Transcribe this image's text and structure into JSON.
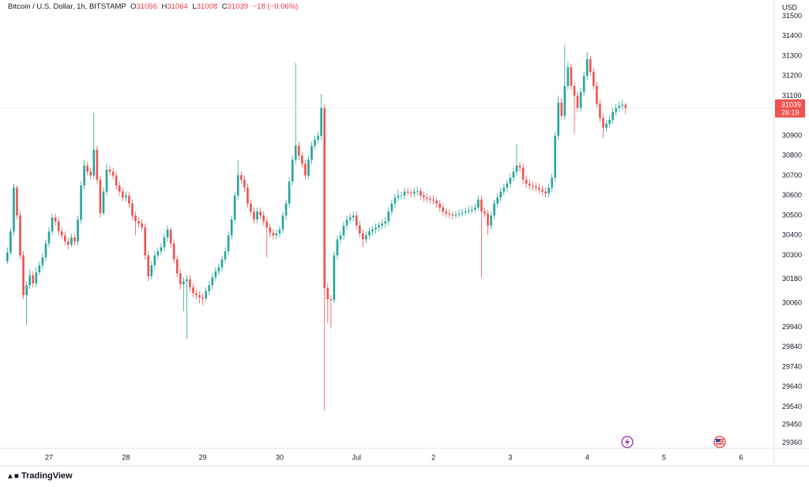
{
  "chart_data": {
    "type": "candlestick",
    "symbol": "Bitcoin / U.S. Dollar, 1h, BITSTAMP",
    "ohlc_legend": {
      "open_key": "O",
      "open": 31056,
      "high_key": "H",
      "high": 31064,
      "low_key": "L",
      "low": 31008,
      "close_key": "C",
      "close": 31039,
      "change": "−18 (−0.06%)"
    },
    "currency": "USD",
    "last_price": 31039,
    "countdown": "26:19",
    "brand": "TradingView",
    "up_color": "#26a69a",
    "down_color": "#ef5350",
    "grid": false,
    "ylim": [
      29332,
      31581
    ],
    "yticks": [
      31500,
      31400,
      31300,
      31200,
      31100,
      30900,
      30800,
      30700,
      30600,
      30500,
      30400,
      30300,
      30180,
      30060,
      29940,
      29840,
      29740,
      29640,
      29540,
      29450,
      29360
    ],
    "xlim": [
      -15.3,
      226.4
    ],
    "xticks": [
      {
        "value": 0,
        "label": "27"
      },
      {
        "value": 24,
        "label": "28"
      },
      {
        "value": 48,
        "label": "29"
      },
      {
        "value": 72,
        "label": "30"
      },
      {
        "value": 96,
        "label": "Jul"
      },
      {
        "value": 120,
        "label": "2"
      },
      {
        "value": 144,
        "label": "3"
      },
      {
        "value": 168,
        "label": "4"
      },
      {
        "value": 192,
        "label": "5"
      },
      {
        "value": 216,
        "label": "6"
      }
    ],
    "x": [
      -13,
      -12,
      -11,
      -10,
      -9,
      -8,
      -7,
      -6,
      -5,
      -4,
      -3,
      -2,
      -1,
      0,
      1,
      2,
      3,
      4,
      5,
      6,
      7,
      8,
      9,
      10,
      11,
      12,
      13,
      14,
      15,
      16,
      17,
      18,
      19,
      20,
      21,
      22,
      23,
      24,
      25,
      26,
      27,
      28,
      29,
      30,
      31,
      32,
      33,
      34,
      35,
      36,
      37,
      38,
      39,
      40,
      41,
      42,
      43,
      44,
      45,
      46,
      47,
      48,
      49,
      50,
      51,
      52,
      53,
      54,
      55,
      56,
      57,
      58,
      59,
      60,
      61,
      62,
      63,
      64,
      65,
      66,
      67,
      68,
      69,
      70,
      71,
      72,
      73,
      74,
      75,
      76,
      77,
      78,
      79,
      80,
      81,
      82,
      83,
      84,
      85,
      86,
      87,
      88,
      89,
      90,
      91,
      92,
      93,
      94,
      95,
      96,
      97,
      98,
      99,
      100,
      101,
      102,
      103,
      104,
      105,
      106,
      107,
      108,
      109,
      110,
      111,
      112,
      113,
      114,
      115,
      116,
      117,
      118,
      119,
      120,
      121,
      122,
      123,
      124,
      125,
      126,
      127,
      128,
      129,
      130,
      131,
      132,
      133,
      134,
      135,
      136,
      137,
      138,
      139,
      140,
      141,
      142,
      143,
      144,
      145,
      146,
      147,
      148,
      149,
      150,
      151,
      152,
      153,
      154,
      155,
      156,
      157,
      158,
      159,
      160,
      161,
      162,
      163,
      164,
      165,
      166,
      167,
      168,
      169,
      170,
      171,
      172,
      173,
      174,
      175,
      176,
      177,
      178,
      179,
      180
    ],
    "candles": [
      [
        30270,
        30340,
        30255,
        30314
      ],
      [
        30314,
        30440,
        30300,
        30420
      ],
      [
        30420,
        30660,
        30400,
        30640
      ],
      [
        30640,
        30650,
        30480,
        30500
      ],
      [
        30500,
        30520,
        30280,
        30300
      ],
      [
        30300,
        30320,
        30080,
        30100
      ],
      [
        30100,
        30170,
        29950,
        30150
      ],
      [
        30150,
        30230,
        30130,
        30200
      ],
      [
        30200,
        30220,
        30140,
        30160
      ],
      [
        30160,
        30240,
        30140,
        30215
      ],
      [
        30215,
        30270,
        30200,
        30250
      ],
      [
        30250,
        30310,
        30230,
        30290
      ],
      [
        30290,
        30380,
        30270,
        30360
      ],
      [
        30360,
        30440,
        30340,
        30420
      ],
      [
        30420,
        30510,
        30400,
        30490
      ],
      [
        30490,
        30510,
        30450,
        30470
      ],
      [
        30470,
        30490,
        30400,
        30420
      ],
      [
        30420,
        30440,
        30380,
        30400
      ],
      [
        30400,
        30420,
        30350,
        30370
      ],
      [
        30370,
        30390,
        30330,
        30354
      ],
      [
        30354,
        30410,
        30340,
        30390
      ],
      [
        30390,
        30410,
        30350,
        30370
      ],
      [
        30370,
        30500,
        30350,
        30480
      ],
      [
        30480,
        30670,
        30460,
        30650
      ],
      [
        30650,
        30780,
        30630,
        30750
      ],
      [
        30750,
        30770,
        30700,
        30720
      ],
      [
        30720,
        30740,
        30680,
        30700
      ],
      [
        30700,
        31015,
        30680,
        30830
      ],
      [
        30830,
        30850,
        30660,
        30680
      ],
      [
        30680,
        30700,
        30490,
        30512
      ],
      [
        30512,
        30640,
        30500,
        30620
      ],
      [
        30620,
        30760,
        30600,
        30730
      ],
      [
        30730,
        30750,
        30700,
        30720
      ],
      [
        30720,
        30740,
        30680,
        30700
      ],
      [
        30700,
        30720,
        30630,
        30650
      ],
      [
        30650,
        30670,
        30600,
        30620
      ],
      [
        30620,
        30640,
        30570,
        30590
      ],
      [
        30590,
        30620,
        30570,
        30600
      ],
      [
        30600,
        30620,
        30540,
        30560
      ],
      [
        30560,
        30580,
        30480,
        30500
      ],
      [
        30500,
        30520,
        30400,
        30472
      ],
      [
        30472,
        30490,
        30440,
        30460
      ],
      [
        30460,
        30480,
        30420,
        30440
      ],
      [
        30440,
        30460,
        30280,
        30300
      ],
      [
        30300,
        30320,
        30170,
        30195
      ],
      [
        30195,
        30270,
        30180,
        30250
      ],
      [
        30250,
        30320,
        30230,
        30300
      ],
      [
        30300,
        30340,
        30280,
        30320
      ],
      [
        30320,
        30360,
        30300,
        30340
      ],
      [
        30340,
        30410,
        30320,
        30390
      ],
      [
        30390,
        30450,
        30370,
        30429
      ],
      [
        30429,
        30440,
        30340,
        30360
      ],
      [
        30360,
        30380,
        30260,
        30280
      ],
      [
        30280,
        30300,
        30190,
        30210
      ],
      [
        30210,
        30230,
        30130,
        30155
      ],
      [
        30155,
        30190,
        30020,
        30170
      ],
      [
        30170,
        30200,
        29880,
        30180
      ],
      [
        30180,
        30200,
        30120,
        30140
      ],
      [
        30140,
        30160,
        30090,
        30110
      ],
      [
        30110,
        30130,
        30080,
        30100
      ],
      [
        30100,
        30120,
        30060,
        30090
      ],
      [
        30090,
        30110,
        30050,
        30084
      ],
      [
        30084,
        30140,
        30070,
        30120
      ],
      [
        30120,
        30170,
        30100,
        30150
      ],
      [
        30150,
        30210,
        30130,
        30190
      ],
      [
        30190,
        30240,
        30170,
        30220
      ],
      [
        30220,
        30260,
        30200,
        30240
      ],
      [
        30240,
        30300,
        30220,
        30280
      ],
      [
        30280,
        30340,
        30260,
        30320
      ],
      [
        30320,
        30420,
        30300,
        30400
      ],
      [
        30400,
        30500,
        30380,
        30480
      ],
      [
        30480,
        30620,
        30460,
        30600
      ],
      [
        30600,
        30780,
        30580,
        30702
      ],
      [
        30702,
        30720,
        30660,
        30680
      ],
      [
        30680,
        30700,
        30620,
        30640
      ],
      [
        30640,
        30660,
        30540,
        30560
      ],
      [
        30560,
        30580,
        30500,
        30520
      ],
      [
        30520,
        30540,
        30460,
        30480
      ],
      [
        30480,
        30540,
        30460,
        30520
      ],
      [
        30520,
        30540,
        30480,
        30500
      ],
      [
        30500,
        30520,
        30450,
        30470
      ],
      [
        30470,
        30490,
        30290,
        30440
      ],
      [
        30440,
        30460,
        30390,
        30413
      ],
      [
        30413,
        30430,
        30380,
        30400
      ],
      [
        30400,
        30430,
        30380,
        30410
      ],
      [
        30410,
        30450,
        30390,
        30430
      ],
      [
        30430,
        30520,
        30410,
        30500
      ],
      [
        30500,
        30580,
        30480,
        30560
      ],
      [
        30560,
        30690,
        30540,
        30670
      ],
      [
        30670,
        30800,
        30650,
        30780
      ],
      [
        30780,
        31264,
        30760,
        30850
      ],
      [
        30850,
        30870,
        30780,
        30800
      ],
      [
        30800,
        30820,
        30740,
        30760
      ],
      [
        30760,
        30780,
        30680,
        30700
      ],
      [
        30700,
        30800,
        30680,
        30780
      ],
      [
        30780,
        30870,
        30760,
        30850
      ],
      [
        30850,
        30900,
        30830,
        30880
      ],
      [
        30880,
        30920,
        30860,
        30900
      ],
      [
        30900,
        31110,
        30880,
        31040
      ],
      [
        31040,
        31060,
        29522,
        30136
      ],
      [
        30136,
        30160,
        29960,
        30080
      ],
      [
        30080,
        30100,
        29935,
        30076
      ],
      [
        30076,
        30320,
        30060,
        30300
      ],
      [
        30300,
        30400,
        30280,
        30380
      ],
      [
        30380,
        30420,
        30360,
        30400
      ],
      [
        30400,
        30470,
        30380,
        30450
      ],
      [
        30450,
        30500,
        30430,
        30478
      ],
      [
        30478,
        30510,
        30460,
        30490
      ],
      [
        30490,
        30520,
        30470,
        30500
      ],
      [
        30500,
        30520,
        30430,
        30450
      ],
      [
        30450,
        30470,
        30390,
        30410
      ],
      [
        30410,
        30430,
        30340,
        30380
      ],
      [
        30380,
        30420,
        30360,
        30400
      ],
      [
        30400,
        30440,
        30380,
        30420
      ],
      [
        30420,
        30450,
        30400,
        30430
      ],
      [
        30430,
        30460,
        30410,
        30440
      ],
      [
        30440,
        30470,
        30420,
        30450
      ],
      [
        30450,
        30480,
        30430,
        30460
      ],
      [
        30460,
        30490,
        30440,
        30470
      ],
      [
        30470,
        30540,
        30450,
        30520
      ],
      [
        30520,
        30580,
        30500,
        30560
      ],
      [
        30560,
        30610,
        30540,
        30590
      ],
      [
        30590,
        30630,
        30570,
        30600
      ],
      [
        30600,
        30620,
        30580,
        30600
      ],
      [
        30600,
        30640,
        30580,
        30620
      ],
      [
        30620,
        30640,
        30600,
        30615
      ],
      [
        30615,
        30630,
        30590,
        30610
      ],
      [
        30610,
        30640,
        30590,
        30620
      ],
      [
        30620,
        30645,
        30600,
        30623
      ],
      [
        30623,
        30640,
        30580,
        30600
      ],
      [
        30600,
        30620,
        30570,
        30590
      ],
      [
        30590,
        30610,
        30565,
        30585
      ],
      [
        30585,
        30600,
        30560,
        30580
      ],
      [
        30580,
        30600,
        30555,
        30575
      ],
      [
        30575,
        30590,
        30540,
        30560
      ],
      [
        30560,
        30575,
        30520,
        30540
      ],
      [
        30540,
        30560,
        30500,
        30520
      ],
      [
        30520,
        30535,
        30490,
        30510
      ],
      [
        30510,
        30530,
        30485,
        30505
      ],
      [
        30505,
        30520,
        30480,
        30500
      ],
      [
        30500,
        30525,
        30485,
        30505
      ],
      [
        30505,
        30530,
        30490,
        30510
      ],
      [
        30510,
        30535,
        30495,
        30515
      ],
      [
        30515,
        30540,
        30500,
        30520
      ],
      [
        30520,
        30545,
        30505,
        30525
      ],
      [
        30525,
        30550,
        30510,
        30530
      ],
      [
        30530,
        30560,
        30515,
        30540
      ],
      [
        30540,
        30600,
        30525,
        30580
      ],
      [
        30580,
        30600,
        30187,
        30520
      ],
      [
        30520,
        30540,
        30490,
        30510
      ],
      [
        30510,
        30530,
        30400,
        30450
      ],
      [
        30450,
        30520,
        30430,
        30500
      ],
      [
        30500,
        30580,
        30480,
        30560
      ],
      [
        30560,
        30610,
        30540,
        30590
      ],
      [
        30590,
        30640,
        30570,
        30620
      ],
      [
        30620,
        30660,
        30600,
        30640
      ],
      [
        30640,
        30680,
        30620,
        30660
      ],
      [
        30660,
        30710,
        30640,
        30690
      ],
      [
        30690,
        30740,
        30670,
        30720
      ],
      [
        30720,
        30860,
        30700,
        30750
      ],
      [
        30750,
        30770,
        30720,
        30740
      ],
      [
        30740,
        30760,
        30660,
        30680
      ],
      [
        30680,
        30700,
        30640,
        30660
      ],
      [
        30660,
        30680,
        30630,
        30650
      ],
      [
        30650,
        30670,
        30625,
        30645
      ],
      [
        30645,
        30665,
        30620,
        30640
      ],
      [
        30640,
        30660,
        30610,
        30630
      ],
      [
        30630,
        30650,
        30600,
        30620
      ],
      [
        30620,
        30640,
        30590,
        30610
      ],
      [
        30610,
        30660,
        30590,
        30640
      ],
      [
        30640,
        30710,
        30620,
        30690
      ],
      [
        30690,
        30920,
        30670,
        30900
      ],
      [
        30900,
        31100,
        30880,
        31066
      ],
      [
        31066,
        31090,
        30980,
        31000
      ],
      [
        31000,
        31355,
        30980,
        31150
      ],
      [
        31150,
        31270,
        31130,
        31244
      ],
      [
        31244,
        31260,
        31130,
        31150
      ],
      [
        31150,
        31170,
        30910,
        31100
      ],
      [
        31100,
        31120,
        31020,
        31040
      ],
      [
        31040,
        31140,
        31020,
        31120
      ],
      [
        31120,
        31220,
        31100,
        31200
      ],
      [
        31200,
        31320,
        31180,
        31284
      ],
      [
        31284,
        31300,
        31200,
        31220
      ],
      [
        31220,
        31240,
        31130,
        31150
      ],
      [
        31150,
        31170,
        31040,
        31060
      ],
      [
        31060,
        31080,
        30970,
        30990
      ],
      [
        30990,
        31010,
        30890,
        30940
      ],
      [
        30940,
        30980,
        30920,
        30960
      ],
      [
        30960,
        31000,
        30940,
        30980
      ],
      [
        30980,
        31040,
        30960,
        31020
      ],
      [
        31020,
        31060,
        31000,
        31040
      ],
      [
        31040,
        31070,
        31020,
        31050
      ],
      [
        31050,
        31080,
        31030,
        31056
      ],
      [
        31056,
        31064,
        31008,
        31039
      ]
    ]
  }
}
